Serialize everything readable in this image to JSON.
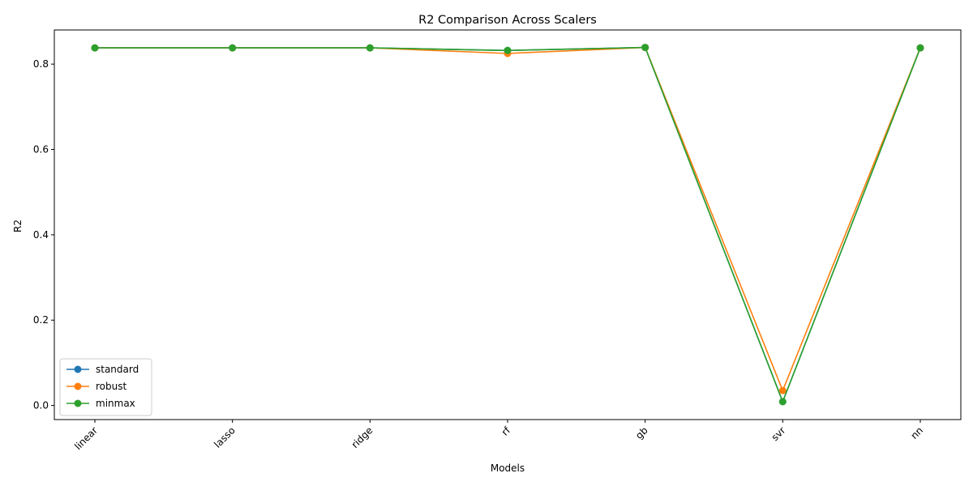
{
  "chart_data": {
    "type": "line",
    "title": "R2 Comparison Across Scalers",
    "xlabel": "Models",
    "ylabel": "R2",
    "categories": [
      "linear",
      "lasso",
      "ridge",
      "rf",
      "gb",
      "svr",
      "nn"
    ],
    "ylim": [
      -0.033,
      0.88
    ],
    "yticks": [
      0.0,
      0.2,
      0.4,
      0.6,
      0.8
    ],
    "ytick_labels": [
      "0.0",
      "0.2",
      "0.4",
      "0.6",
      "0.8"
    ],
    "xtick_rotation_deg": 45,
    "grid": false,
    "legend_position": "lower-left",
    "series": [
      {
        "name": "standard",
        "color": "#1f77b4",
        "marker": "circle",
        "values": [
          0.838,
          0.838,
          0.838,
          0.832,
          0.839,
          0.009,
          0.838
        ]
      },
      {
        "name": "robust",
        "color": "#ff7f0e",
        "marker": "circle",
        "values": [
          0.838,
          0.838,
          0.838,
          0.825,
          0.839,
          0.035,
          0.838
        ]
      },
      {
        "name": "minmax",
        "color": "#2ca02c",
        "marker": "circle",
        "values": [
          0.838,
          0.838,
          0.838,
          0.832,
          0.839,
          0.009,
          0.838
        ]
      }
    ]
  }
}
